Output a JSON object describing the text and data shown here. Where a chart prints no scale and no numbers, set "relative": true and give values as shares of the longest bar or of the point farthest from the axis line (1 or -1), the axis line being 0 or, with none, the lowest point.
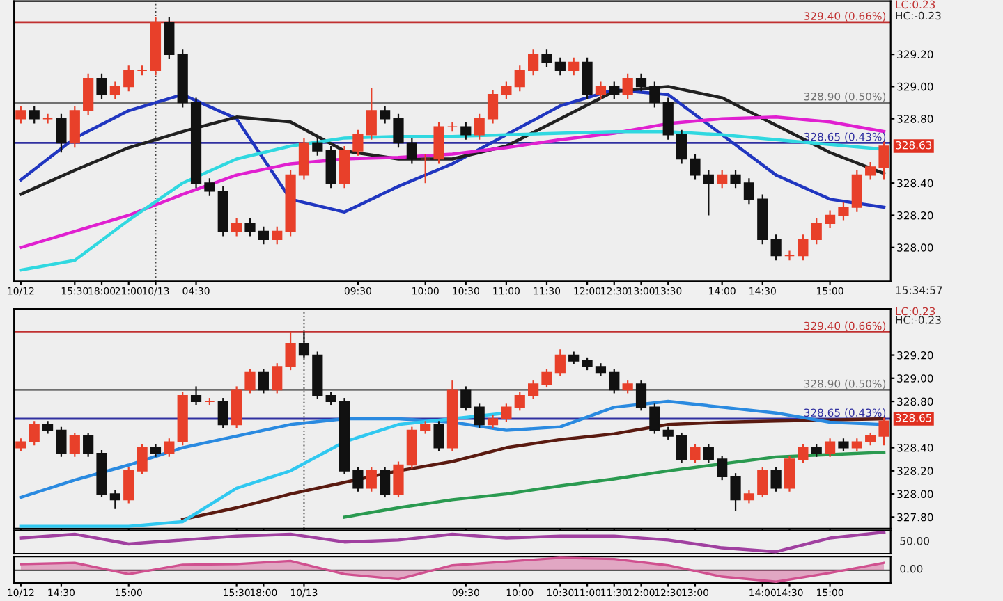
{
  "chart_data": [
    {
      "type": "candlestick",
      "ylim": [
        327.79,
        329.53
      ],
      "yticks": [
        {
          "value": 328.0,
          "label": "328.00"
        },
        {
          "value": 328.2,
          "label": "328.20"
        },
        {
          "value": 328.4,
          "label": "328.40"
        },
        {
          "value": 328.8,
          "label": "328.80"
        },
        {
          "value": 329.0,
          "label": "329.00"
        },
        {
          "value": 329.2,
          "label": "329.20"
        }
      ],
      "categories": [
        "10/12",
        null,
        null,
        null,
        "15:30",
        null,
        "18:00",
        null,
        "21:00",
        null,
        "10/13",
        null,
        null,
        "04:30",
        null,
        null,
        null,
        null,
        null,
        null,
        null,
        null,
        null,
        null,
        null,
        "09:30",
        null,
        null,
        null,
        null,
        "10:00",
        null,
        null,
        "10:30",
        null,
        null,
        "11:00",
        null,
        null,
        "11:30",
        null,
        null,
        "12:00",
        null,
        "12:30",
        null,
        "13:00",
        null,
        "13:30",
        null,
        null,
        null,
        "14:00",
        null,
        null,
        "14:30",
        null,
        null,
        null,
        null,
        "15:00",
        null,
        null,
        null,
        null
      ],
      "ohlc": [
        [
          328.8,
          328.88,
          328.77,
          328.85
        ],
        [
          328.85,
          328.88,
          328.77,
          328.8
        ],
        [
          328.8,
          328.83,
          328.77,
          328.8
        ],
        [
          328.8,
          328.83,
          328.59,
          328.65
        ],
        [
          328.65,
          328.88,
          328.62,
          328.85
        ],
        [
          328.85,
          329.08,
          328.82,
          329.05
        ],
        [
          329.05,
          329.08,
          328.92,
          328.95
        ],
        [
          328.95,
          329.03,
          328.92,
          329.0
        ],
        [
          329.0,
          329.13,
          328.97,
          329.1
        ],
        [
          329.1,
          329.13,
          329.07,
          329.1
        ],
        [
          329.1,
          329.43,
          329.07,
          329.4
        ],
        [
          329.4,
          329.43,
          329.17,
          329.2
        ],
        [
          329.2,
          329.23,
          328.87,
          328.9
        ],
        [
          328.9,
          328.93,
          328.37,
          328.4
        ],
        [
          328.4,
          328.43,
          328.32,
          328.35
        ],
        [
          328.35,
          328.38,
          328.07,
          328.1
        ],
        [
          328.1,
          328.18,
          328.07,
          328.15
        ],
        [
          328.15,
          328.18,
          328.07,
          328.1
        ],
        [
          328.1,
          328.13,
          328.02,
          328.05
        ],
        [
          328.05,
          328.13,
          328.02,
          328.1
        ],
        [
          328.1,
          328.48,
          328.07,
          328.45
        ],
        [
          328.45,
          328.68,
          328.42,
          328.65
        ],
        [
          328.65,
          328.68,
          328.57,
          328.6
        ],
        [
          328.6,
          328.63,
          328.37,
          328.4
        ],
        [
          328.4,
          328.63,
          328.37,
          328.6
        ],
        [
          328.6,
          328.73,
          328.57,
          328.7
        ],
        [
          328.7,
          328.99,
          328.67,
          328.85
        ],
        [
          328.85,
          328.88,
          328.77,
          328.8
        ],
        [
          328.8,
          328.83,
          328.62,
          328.65
        ],
        [
          328.65,
          328.68,
          328.52,
          328.55
        ],
        [
          328.55,
          328.58,
          328.4,
          328.55
        ],
        [
          328.55,
          328.78,
          328.52,
          328.75
        ],
        [
          328.75,
          328.78,
          328.72,
          328.75
        ],
        [
          328.75,
          328.78,
          328.67,
          328.7
        ],
        [
          328.7,
          328.83,
          328.67,
          328.8
        ],
        [
          328.8,
          328.98,
          328.77,
          328.95
        ],
        [
          328.95,
          329.03,
          328.92,
          329.0
        ],
        [
          329.0,
          329.13,
          328.97,
          329.1
        ],
        [
          329.1,
          329.23,
          329.07,
          329.2
        ],
        [
          329.2,
          329.23,
          329.12,
          329.15
        ],
        [
          329.15,
          329.18,
          329.07,
          329.1
        ],
        [
          329.1,
          329.18,
          329.07,
          329.15
        ],
        [
          329.15,
          329.18,
          328.92,
          328.95
        ],
        [
          328.95,
          329.03,
          328.92,
          329.0
        ],
        [
          329.0,
          329.03,
          328.92,
          328.95
        ],
        [
          328.95,
          329.08,
          328.92,
          329.05
        ],
        [
          329.05,
          329.08,
          328.97,
          329.0
        ],
        [
          329.0,
          329.03,
          328.87,
          328.9
        ],
        [
          328.9,
          328.93,
          328.67,
          328.7
        ],
        [
          328.7,
          328.73,
          328.52,
          328.55
        ],
        [
          328.55,
          328.58,
          328.42,
          328.45
        ],
        [
          328.45,
          328.48,
          328.2,
          328.4
        ],
        [
          328.4,
          328.48,
          328.37,
          328.45
        ],
        [
          328.45,
          328.48,
          328.37,
          328.4
        ],
        [
          328.4,
          328.43,
          328.27,
          328.3
        ],
        [
          328.3,
          328.33,
          328.02,
          328.05
        ],
        [
          328.05,
          328.08,
          327.92,
          327.95
        ],
        [
          327.95,
          327.98,
          327.92,
          327.95
        ],
        [
          327.95,
          328.08,
          327.92,
          328.05
        ],
        [
          328.05,
          328.18,
          328.02,
          328.15
        ],
        [
          328.15,
          328.23,
          328.12,
          328.2
        ],
        [
          328.2,
          328.28,
          328.17,
          328.25
        ],
        [
          328.25,
          328.48,
          328.22,
          328.45
        ],
        [
          328.45,
          328.53,
          328.42,
          328.5
        ],
        [
          328.5,
          328.66,
          328.42,
          328.63
        ]
      ],
      "colors": [
        "#e8402a",
        "#111111",
        "#e8402a",
        "#111111",
        "#e8402a",
        "#e8402a",
        "#111111",
        "#e8402a",
        "#e8402a",
        "#e8402a",
        "#e8402a",
        "#111111",
        "#111111",
        "#111111",
        "#111111",
        "#111111",
        "#e8402a",
        "#111111",
        "#111111",
        "#e8402a",
        "#e8402a",
        "#e8402a",
        "#111111",
        "#111111",
        "#e8402a",
        "#e8402a",
        "#e8402a",
        "#111111",
        "#111111",
        "#111111",
        "#e8402a",
        "#e8402a",
        "#e8402a",
        "#111111",
        "#e8402a",
        "#e8402a",
        "#e8402a",
        "#e8402a",
        "#e8402a",
        "#111111",
        "#111111",
        "#e8402a",
        "#111111",
        "#e8402a",
        "#111111",
        "#e8402a",
        "#111111",
        "#111111",
        "#111111",
        "#111111",
        "#111111",
        "#111111",
        "#e8402a",
        "#111111",
        "#111111",
        "#111111",
        "#111111",
        "#e8402a",
        "#e8402a",
        "#e8402a",
        "#e8402a",
        "#e8402a",
        "#e8402a",
        "#e8402a",
        "#e8402a"
      ],
      "series": [
        {
          "type": "line",
          "color": "#2036c0",
          "values": [
            328.42,
            null,
            null,
            null,
            328.68,
            null,
            null,
            null,
            328.85,
            null,
            null,
            null,
            328.95,
            null,
            null,
            null,
            328.8,
            null,
            null,
            null,
            328.3,
            null,
            null,
            null,
            328.22,
            null,
            null,
            null,
            328.38,
            null,
            null,
            null,
            328.52,
            null,
            null,
            null,
            328.7,
            null,
            null,
            null,
            328.88,
            null,
            null,
            null,
            328.98,
            null,
            null,
            null,
            328.95,
            null,
            null,
            null,
            328.7,
            null,
            null,
            null,
            328.45,
            null,
            null,
            null,
            328.3,
            null,
            null,
            null,
            328.25
          ]
        },
        {
          "type": "line",
          "color": "#202020",
          "values": [
            328.33,
            null,
            null,
            null,
            328.48,
            null,
            null,
            null,
            328.62,
            null,
            null,
            null,
            328.72,
            null,
            null,
            null,
            328.81,
            null,
            null,
            null,
            328.78,
            null,
            null,
            null,
            328.6,
            null,
            null,
            null,
            328.55,
            null,
            null,
            null,
            328.55,
            null,
            null,
            null,
            328.63,
            null,
            null,
            null,
            328.8,
            null,
            null,
            null,
            328.97,
            null,
            null,
            null,
            329.0,
            null,
            null,
            null,
            328.93,
            null,
            null,
            null,
            328.76,
            null,
            null,
            null,
            328.59,
            null,
            null,
            null,
            328.46
          ]
        },
        {
          "type": "line",
          "color": "#e020d0",
          "values": [
            328.0,
            null,
            null,
            null,
            328.1,
            null,
            null,
            null,
            328.2,
            null,
            null,
            null,
            328.33,
            null,
            null,
            null,
            328.45,
            null,
            null,
            null,
            328.52,
            null,
            null,
            null,
            328.55,
            null,
            null,
            null,
            328.56,
            null,
            null,
            null,
            328.58,
            null,
            null,
            null,
            328.62,
            null,
            null,
            null,
            328.67,
            null,
            null,
            null,
            328.71,
            null,
            null,
            null,
            328.77,
            null,
            null,
            null,
            328.8,
            null,
            null,
            null,
            328.81,
            null,
            null,
            null,
            328.78,
            null,
            null,
            null,
            328.72
          ]
        },
        {
          "type": "line",
          "color": "#30d8e0",
          "values": [
            327.86,
            null,
            null,
            null,
            327.92,
            null,
            null,
            null,
            328.17,
            null,
            null,
            null,
            328.4,
            null,
            null,
            null,
            328.55,
            null,
            null,
            null,
            328.63,
            null,
            null,
            null,
            328.68,
            null,
            null,
            null,
            328.69,
            null,
            null,
            null,
            328.69,
            null,
            null,
            null,
            328.7,
            null,
            null,
            null,
            328.71,
            null,
            null,
            null,
            328.72,
            null,
            null,
            null,
            328.72,
            null,
            null,
            null,
            328.7,
            null,
            null,
            null,
            328.67,
            null,
            null,
            null,
            328.64,
            null,
            null,
            null,
            328.61
          ]
        }
      ],
      "ref_lines": [
        {
          "axis": "y",
          "value": 329.4,
          "label": "329.40 (0.66%)",
          "color": "#c03030"
        },
        {
          "axis": "y",
          "value": 328.9,
          "label": "328.90 (0.50%)",
          "color": "#707070"
        },
        {
          "axis": "y",
          "value": 328.65,
          "label": "328.65 (0.43%)",
          "color": "#3030a0"
        },
        {
          "axis": "x",
          "value": "10/13",
          "color": "#404040",
          "line_style": "dotted"
        }
      ],
      "annotations": [
        "LC:0.23",
        "HC:-0.23",
        "15:34:57",
        {
          "text": "328.63",
          "y": 328.63
        }
      ]
    },
    {
      "type": "candlestick",
      "ylim": [
        327.7,
        329.6
      ],
      "tick_labels": "y",
      "yticks": [
        {
          "value": 327.8,
          "label": "327.80"
        },
        {
          "value": 328.0,
          "label": "328.00"
        },
        {
          "value": 328.2,
          "label": "328.20"
        },
        {
          "value": 328.4,
          "label": "328.40"
        },
        {
          "value": 328.8,
          "label": "328.80"
        },
        {
          "value": 329.0,
          "label": "329.00"
        },
        {
          "value": 329.2,
          "label": "329.20"
        }
      ],
      "categories": [
        "10/12",
        null,
        null,
        "14:30",
        null,
        null,
        null,
        null,
        "15:00",
        null,
        null,
        null,
        null,
        null,
        null,
        null,
        "15:30",
        null,
        "18:00",
        null,
        null,
        "10/13",
        null,
        null,
        null,
        null,
        null,
        null,
        null,
        null,
        null,
        null,
        null,
        "09:30",
        null,
        null,
        null,
        "10:00",
        null,
        null,
        "10:30",
        null,
        "11:00",
        null,
        "11:30",
        null,
        "12:00",
        null,
        "12:30",
        null,
        "13:00",
        null,
        null,
        null,
        null,
        "14:00",
        null,
        "14:30",
        null,
        null,
        "15:00",
        null,
        null,
        null,
        null
      ],
      "ohlc": [
        [
          328.4,
          328.48,
          328.37,
          328.45
        ],
        [
          328.45,
          328.63,
          328.42,
          328.6
        ],
        [
          328.6,
          328.63,
          328.52,
          328.55
        ],
        [
          328.55,
          328.58,
          328.32,
          328.35
        ],
        [
          328.35,
          328.53,
          328.32,
          328.5
        ],
        [
          328.5,
          328.53,
          328.32,
          328.35
        ],
        [
          328.35,
          328.38,
          327.97,
          328.0
        ],
        [
          328.0,
          328.03,
          327.87,
          327.95
        ],
        [
          327.95,
          328.23,
          327.92,
          328.2
        ],
        [
          328.2,
          328.43,
          328.17,
          328.4
        ],
        [
          328.4,
          328.43,
          328.32,
          328.35
        ],
        [
          328.35,
          328.48,
          328.32,
          328.45
        ],
        [
          328.45,
          328.88,
          328.42,
          328.85
        ],
        [
          328.85,
          328.93,
          328.77,
          328.8
        ],
        [
          328.8,
          328.83,
          328.77,
          328.8
        ],
        [
          328.8,
          328.83,
          328.57,
          328.6
        ],
        [
          328.6,
          328.93,
          328.57,
          328.9
        ],
        [
          328.9,
          329.08,
          328.87,
          329.05
        ],
        [
          329.05,
          329.08,
          328.87,
          328.9
        ],
        [
          328.9,
          329.13,
          328.87,
          329.1
        ],
        [
          329.1,
          329.4,
          329.07,
          329.3
        ],
        [
          329.3,
          329.4,
          329.17,
          329.2
        ],
        [
          329.2,
          329.23,
          328.82,
          328.85
        ],
        [
          328.85,
          328.88,
          328.77,
          328.8
        ],
        [
          328.8,
          328.83,
          328.17,
          328.2
        ],
        [
          328.2,
          328.23,
          328.02,
          328.05
        ],
        [
          328.05,
          328.23,
          328.02,
          328.2
        ],
        [
          328.2,
          328.23,
          327.97,
          328.0
        ],
        [
          328.0,
          328.28,
          327.97,
          328.25
        ],
        [
          328.25,
          328.58,
          328.22,
          328.55
        ],
        [
          328.55,
          328.63,
          328.52,
          328.6
        ],
        [
          328.6,
          328.63,
          328.37,
          328.4
        ],
        [
          328.4,
          328.98,
          328.37,
          328.9
        ],
        [
          328.9,
          328.93,
          328.72,
          328.75
        ],
        [
          328.75,
          328.78,
          328.57,
          328.6
        ],
        [
          328.6,
          328.68,
          328.57,
          328.65
        ],
        [
          328.65,
          328.78,
          328.62,
          328.75
        ],
        [
          328.75,
          328.88,
          328.72,
          328.85
        ],
        [
          328.85,
          328.98,
          328.82,
          328.95
        ],
        [
          328.95,
          329.08,
          328.92,
          329.05
        ],
        [
          329.05,
          329.25,
          329.02,
          329.2
        ],
        [
          329.2,
          329.23,
          329.12,
          329.15
        ],
        [
          329.15,
          329.18,
          329.07,
          329.1
        ],
        [
          329.1,
          329.13,
          329.02,
          329.05
        ],
        [
          329.05,
          329.08,
          328.87,
          328.9
        ],
        [
          328.9,
          328.98,
          328.87,
          328.95
        ],
        [
          328.95,
          328.98,
          328.72,
          328.75
        ],
        [
          328.75,
          328.78,
          328.52,
          328.55
        ],
        [
          328.55,
          328.58,
          328.47,
          328.5
        ],
        [
          328.5,
          328.53,
          328.27,
          328.3
        ],
        [
          328.3,
          328.43,
          328.27,
          328.4
        ],
        [
          328.4,
          328.43,
          328.27,
          328.3
        ],
        [
          328.3,
          328.33,
          328.12,
          328.15
        ],
        [
          328.15,
          328.18,
          327.85,
          327.95
        ],
        [
          327.95,
          328.03,
          327.92,
          328.0
        ],
        [
          328.0,
          328.23,
          327.97,
          328.2
        ],
        [
          328.2,
          328.23,
          328.02,
          328.05
        ],
        [
          328.05,
          328.33,
          328.02,
          328.3
        ],
        [
          328.3,
          328.43,
          328.27,
          328.4
        ],
        [
          328.4,
          328.43,
          328.32,
          328.35
        ],
        [
          328.35,
          328.48,
          328.32,
          328.45
        ],
        [
          328.45,
          328.48,
          328.37,
          328.4
        ],
        [
          328.4,
          328.48,
          328.37,
          328.45
        ],
        [
          328.45,
          328.53,
          328.42,
          328.5
        ],
        [
          328.5,
          328.66,
          328.42,
          328.63
        ]
      ],
      "colors": [
        "#e8402a",
        "#e8402a",
        "#111111",
        "#111111",
        "#e8402a",
        "#111111",
        "#111111",
        "#111111",
        "#e8402a",
        "#e8402a",
        "#111111",
        "#e8402a",
        "#e8402a",
        "#111111",
        "#e8402a",
        "#111111",
        "#e8402a",
        "#e8402a",
        "#111111",
        "#e8402a",
        "#e8402a",
        "#111111",
        "#111111",
        "#111111",
        "#111111",
        "#111111",
        "#e8402a",
        "#111111",
        "#e8402a",
        "#e8402a",
        "#e8402a",
        "#111111",
        "#e8402a",
        "#111111",
        "#111111",
        "#e8402a",
        "#e8402a",
        "#e8402a",
        "#e8402a",
        "#e8402a",
        "#e8402a",
        "#111111",
        "#111111",
        "#111111",
        "#111111",
        "#e8402a",
        "#111111",
        "#111111",
        "#111111",
        "#111111",
        "#e8402a",
        "#111111",
        "#111111",
        "#111111",
        "#e8402a",
        "#e8402a",
        "#111111",
        "#e8402a",
        "#e8402a",
        "#111111",
        "#e8402a",
        "#111111",
        "#e8402a",
        "#e8402a",
        "#e8402a"
      ],
      "series": [
        {
          "type": "line",
          "color": "#5a1a10",
          "values": [
            null,
            null,
            null,
            null,
            null,
            null,
            null,
            null,
            null,
            null,
            null,
            null,
            327.78,
            null,
            null,
            null,
            327.88,
            null,
            null,
            null,
            328.0,
            null,
            null,
            null,
            328.1,
            null,
            null,
            null,
            328.2,
            null,
            null,
            null,
            328.28,
            null,
            null,
            null,
            328.4,
            null,
            null,
            null,
            328.47,
            null,
            null,
            null,
            328.52,
            null,
            null,
            null,
            328.6,
            null,
            null,
            null,
            328.62,
            null,
            null,
            null,
            328.63,
            null,
            null,
            null,
            328.64,
            null,
            null,
            null,
            328.65
          ]
        },
        {
          "type": "line",
          "color": "#2a9a50",
          "values": [
            null,
            null,
            null,
            null,
            null,
            null,
            null,
            null,
            null,
            null,
            null,
            null,
            null,
            null,
            null,
            null,
            null,
            null,
            null,
            null,
            null,
            null,
            null,
            null,
            327.8,
            null,
            null,
            null,
            327.88,
            null,
            null,
            null,
            327.95,
            null,
            null,
            null,
            328.0,
            null,
            null,
            null,
            328.07,
            null,
            null,
            null,
            328.13,
            null,
            null,
            null,
            328.2,
            null,
            null,
            null,
            328.26,
            null,
            null,
            null,
            328.32,
            null,
            null,
            null,
            328.34,
            null,
            null,
            null,
            328.36
          ]
        },
        {
          "type": "line",
          "color": "#2a8ae0",
          "values": [
            327.97,
            null,
            null,
            null,
            328.12,
            null,
            null,
            null,
            328.25,
            null,
            null,
            null,
            328.4,
            null,
            null,
            null,
            328.5,
            null,
            null,
            null,
            328.6,
            null,
            null,
            null,
            328.65,
            null,
            null,
            null,
            328.65,
            null,
            null,
            null,
            328.62,
            null,
            null,
            null,
            328.55,
            null,
            null,
            null,
            328.58,
            null,
            null,
            null,
            328.75,
            null,
            null,
            null,
            328.8,
            null,
            null,
            null,
            328.75,
            null,
            null,
            null,
            328.7,
            null,
            null,
            null,
            328.62,
            null,
            null,
            null,
            328.6
          ]
        },
        {
          "type": "line",
          "color": "#30c8f0",
          "values": [
            327.72,
            null,
            null,
            null,
            327.72,
            null,
            null,
            null,
            327.72,
            null,
            null,
            null,
            327.76,
            null,
            null,
            null,
            328.05,
            null,
            null,
            null,
            328.2,
            null,
            null,
            null,
            328.45,
            null,
            null,
            null,
            328.6,
            null,
            null,
            null,
            328.65,
            null,
            null,
            null,
            328.7,
            null,
            null,
            null,
            null,
            null,
            null,
            null,
            null,
            null,
            null,
            null,
            null,
            null,
            null,
            null,
            null,
            null,
            null,
            null,
            null,
            null,
            null,
            null,
            null,
            null,
            null,
            null,
            null
          ]
        }
      ],
      "ref_lines": [
        {
          "axis": "y",
          "value": 329.4,
          "label": "329.40 (0.66%)",
          "color": "#c03030"
        },
        {
          "axis": "y",
          "value": 328.9,
          "label": "328.90 (0.50%)",
          "color": "#707070"
        },
        {
          "axis": "y",
          "value": 328.65,
          "label": "328.65 (0.43%)",
          "color": "#3030a0"
        },
        {
          "axis": "x",
          "value": "10/13",
          "color": "#404040",
          "line_style": "dotted"
        }
      ],
      "annotations": [
        "LC:0.23",
        "HC:-0.23",
        {
          "text": "328.65",
          "y": 328.65
        }
      ]
    },
    {
      "type": "line",
      "relative": true,
      "categories": [
        null,
        null,
        null,
        null,
        null,
        null,
        null,
        null,
        null,
        null,
        null,
        null,
        null,
        null,
        null,
        null,
        null,
        null,
        null,
        null,
        null,
        null,
        null,
        null,
        null,
        null,
        null,
        null,
        null,
        null,
        null,
        null,
        null,
        null,
        null,
        null,
        null,
        null,
        null,
        null,
        null,
        null,
        null,
        null,
        null,
        null,
        null,
        null,
        null,
        null,
        null,
        null,
        null,
        null,
        null,
        null,
        null,
        null,
        null,
        null,
        null,
        null,
        null,
        null,
        null
      ],
      "series": [
        {
          "color": "#a040a0",
          "values": [
            0.7,
            null,
            null,
            null,
            0.9,
            null,
            null,
            null,
            0.4,
            null,
            null,
            null,
            0.6,
            null,
            null,
            null,
            0.8,
            null,
            null,
            null,
            0.9,
            null,
            null,
            null,
            0.5,
            null,
            null,
            null,
            0.6,
            null,
            null,
            null,
            0.9,
            null,
            null,
            null,
            0.7,
            null,
            null,
            null,
            0.8,
            null,
            null,
            null,
            0.8,
            null,
            null,
            null,
            0.6,
            null,
            null,
            null,
            0.2,
            null,
            null,
            null,
            0.0,
            null,
            null,
            null,
            0.7,
            null,
            null,
            null,
            1.0
          ]
        }
      ],
      "annotations": [
        "50.00"
      ]
    },
    {
      "type": "area",
      "relative": true,
      "categories": [
        "10/12",
        null,
        null,
        "14:30",
        null,
        null,
        null,
        null,
        "15:00",
        null,
        null,
        null,
        null,
        null,
        null,
        null,
        "15:30",
        null,
        "18:00",
        null,
        null,
        "10/13",
        null,
        null,
        null,
        null,
        null,
        null,
        null,
        null,
        null,
        null,
        null,
        "09:30",
        null,
        null,
        null,
        "10:00",
        null,
        null,
        "10:30",
        null,
        "11:00",
        null,
        "11:30",
        null,
        "12:00",
        null,
        "12:30",
        null,
        "13:00",
        null,
        null,
        null,
        null,
        "14:00",
        null,
        "14:30",
        null,
        null,
        "15:00",
        null,
        null,
        null,
        null
      ],
      "series": [
        {
          "color": "#d0508f",
          "values": [
            0.5,
            null,
            null,
            null,
            0.6,
            null,
            null,
            null,
            -0.3,
            null,
            null,
            null,
            0.45,
            null,
            null,
            null,
            0.5,
            null,
            null,
            null,
            0.75,
            null,
            null,
            null,
            -0.3,
            null,
            null,
            null,
            -0.7,
            null,
            null,
            null,
            0.4,
            null,
            null,
            null,
            0.7,
            null,
            null,
            null,
            1.0,
            null,
            null,
            null,
            0.9,
            null,
            null,
            null,
            0.4,
            null,
            null,
            null,
            -0.5,
            null,
            null,
            null,
            -0.9,
            null,
            null,
            null,
            -0.2,
            null,
            null,
            null,
            0.6
          ]
        }
      ],
      "annotations": [
        "0.00"
      ]
    }
  ]
}
